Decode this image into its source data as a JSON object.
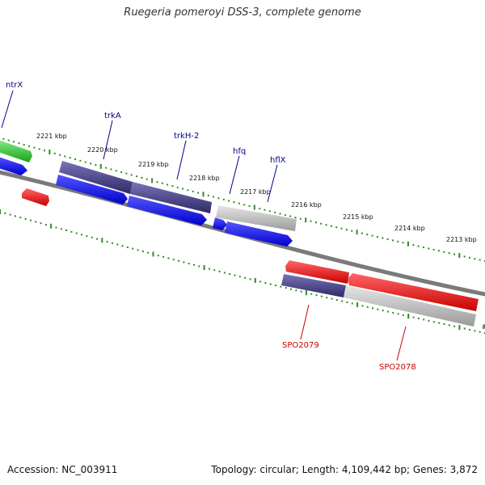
{
  "header": {
    "title": "Ruegeria pomeroyi DSS-3, complete genome"
  },
  "footer": {
    "accession": "Accession: NC_003911",
    "summary": "Topology: circular; Length: 4,109,442 bp; Genes: 3,872"
  },
  "colors": {
    "label_blue": "#00008b",
    "label_red": "#cc0000",
    "tick_green": "#2e8b22",
    "backbone": "#7a7a7a",
    "cds_blue": "#1a1aff",
    "cds_purple": "#4b4488",
    "cds_grey": "#b8b8b8",
    "cds_red": "#ee1111",
    "cds_green": "#2ec82e"
  },
  "ruler_labels": [
    "2221 kbp",
    "2220 kbp",
    "2219 kbp",
    "2218 kbp",
    "2217 kbp",
    "2216 kbp",
    "2215 kbp",
    "2214 kbp",
    "2213 kbp"
  ],
  "genes_forward": [
    "ntrX",
    "trkA",
    "trkH-2",
    "hfq",
    "hflX"
  ],
  "genes_reverse": [
    "SPO2079",
    "SPO2078"
  ]
}
